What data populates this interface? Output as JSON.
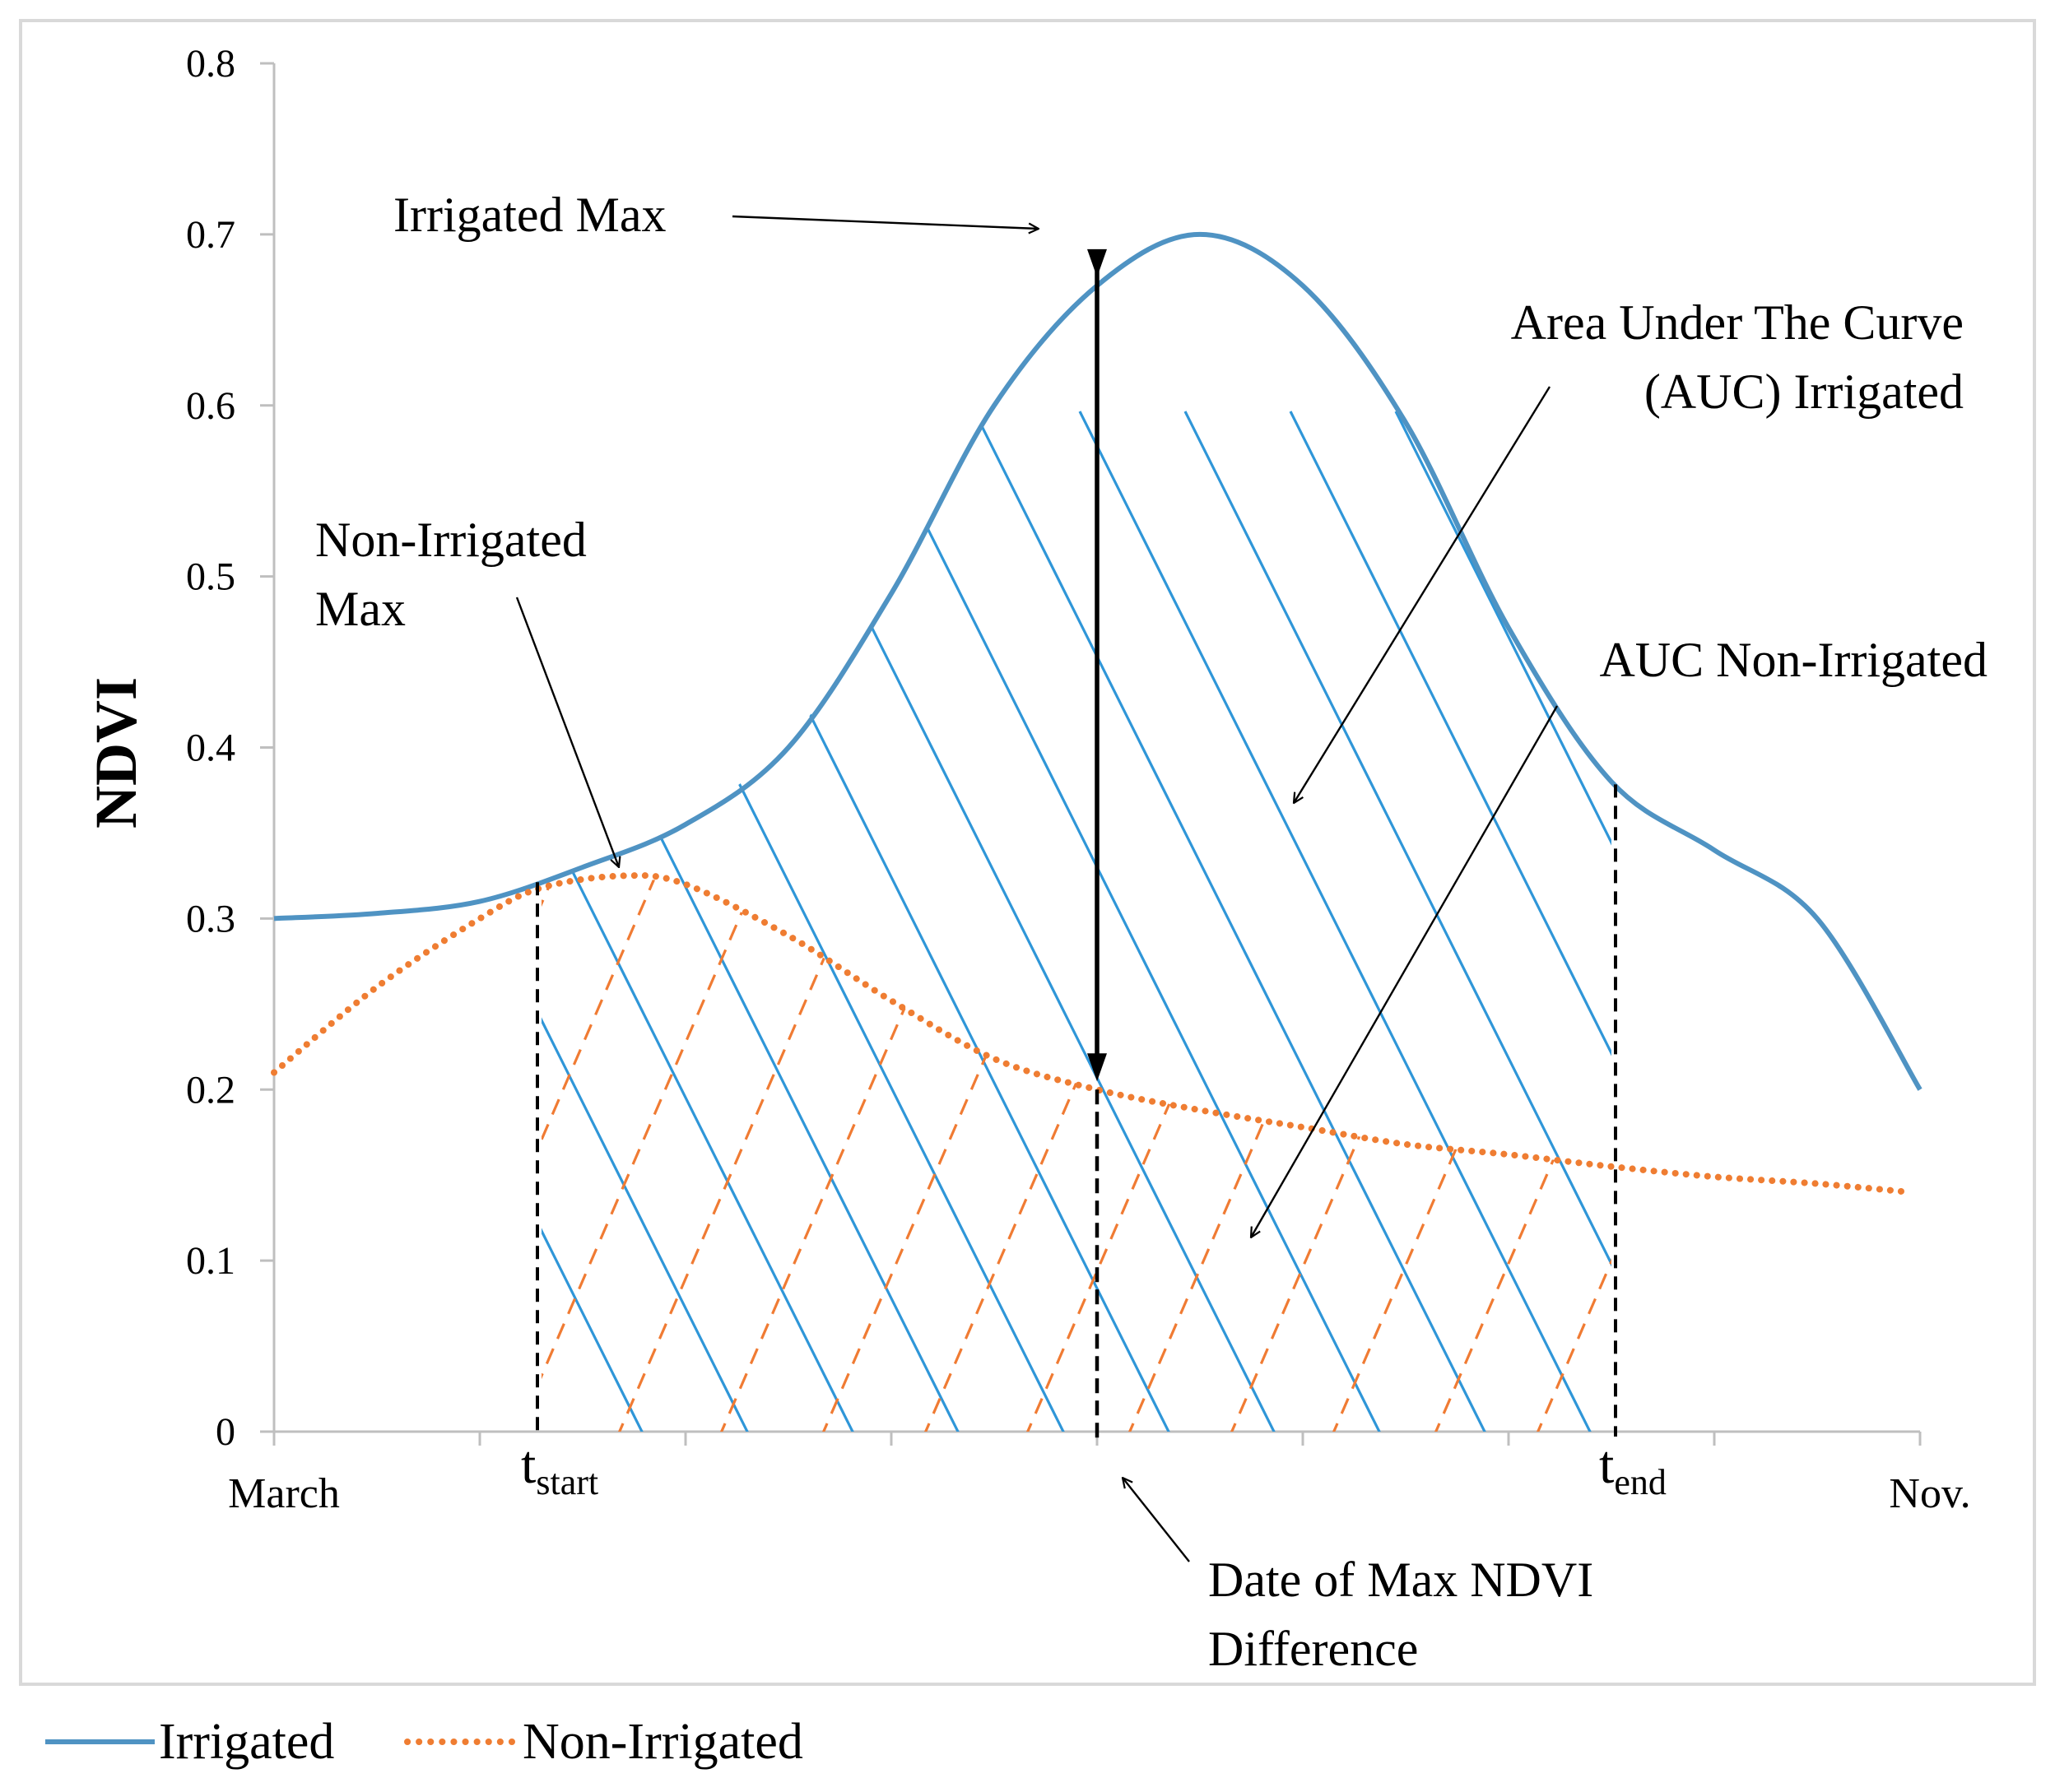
{
  "chart_data": {
    "type": "line",
    "title": "",
    "xlabel": "",
    "ylabel": "NDVI",
    "ylim": [
      0,
      0.8
    ],
    "yticks": [
      "0",
      "0.1",
      "0.2",
      "0.3",
      "0.4",
      "0.5",
      "0.6",
      "0.7",
      "0.8"
    ],
    "ytick_values": [
      0,
      0.1,
      0.2,
      0.3,
      0.4,
      0.5,
      0.6,
      0.7,
      0.8
    ],
    "x_range": [
      0,
      8
    ],
    "x_labels": [
      {
        "text": "March",
        "x": 0
      },
      {
        "text": "Nov.",
        "x": 8
      }
    ],
    "x_tick_positions": [
      0,
      1,
      2,
      3,
      4,
      5,
      6,
      7,
      8
    ],
    "series": [
      {
        "name": "Irrigated",
        "color": "#4f93c3",
        "style": "solid",
        "x": [
          0,
          0.5,
          1,
          1.5,
          2,
          2.5,
          3,
          3.5,
          4,
          4.5,
          5,
          5.5,
          6,
          6.5,
          7,
          7.5,
          8
        ],
        "values": [
          0.3,
          0.303,
          0.31,
          0.33,
          0.355,
          0.4,
          0.49,
          0.6,
          0.67,
          0.7,
          0.67,
          0.59,
          0.47,
          0.38,
          0.34,
          0.3,
          0.2
        ]
      },
      {
        "name": "Non-Irrigated",
        "color": "#ef7d32",
        "style": "dotted",
        "x": [
          0,
          0.5,
          1,
          1.3,
          1.7,
          2,
          2.5,
          3,
          3.5,
          4,
          4.5,
          5,
          5.5,
          6,
          6.5,
          7,
          7.5,
          7.95
        ],
        "values": [
          0.21,
          0.26,
          0.3,
          0.318,
          0.325,
          0.32,
          0.29,
          0.252,
          0.218,
          0.2,
          0.188,
          0.178,
          0.168,
          0.162,
          0.155,
          0.149,
          0.145,
          0.14
        ]
      }
    ],
    "markers": {
      "t_start": {
        "x": 1.28,
        "base": "t",
        "sub": "start"
      },
      "t_end": {
        "x": 6.52,
        "base": "t",
        "sub": "end"
      },
      "max_difference": {
        "x": 4.0,
        "from": 0.2,
        "to": 0.7
      }
    },
    "hatch": {
      "irrigated_color": "#2f96d8",
      "non_irrigated_color": "#f07b33",
      "x_from": 1.3,
      "x_to": 6.5
    },
    "annotations": [
      {
        "id": "irrigated-max",
        "lines": [
          "Irrigated Max"
        ]
      },
      {
        "id": "auc-irrigated",
        "lines": [
          "Area Under The Curve",
          "(AUC) Irrigated"
        ]
      },
      {
        "id": "non-irrigated-max",
        "lines": [
          "Non-Irrigated",
          "Max"
        ]
      },
      {
        "id": "auc-non-irrigated",
        "lines": [
          "AUC Non-Irrigated"
        ]
      },
      {
        "id": "max-ndvi-date",
        "lines": [
          "Date of Max NDVI",
          "Difference"
        ]
      }
    ],
    "legend": [
      {
        "label": "Irrigated",
        "color": "#4f93c3",
        "style": "solid"
      },
      {
        "label": "Non-Irrigated",
        "color": "#ef7d32",
        "style": "dotted"
      }
    ],
    "legend_position": "bottom-left"
  }
}
